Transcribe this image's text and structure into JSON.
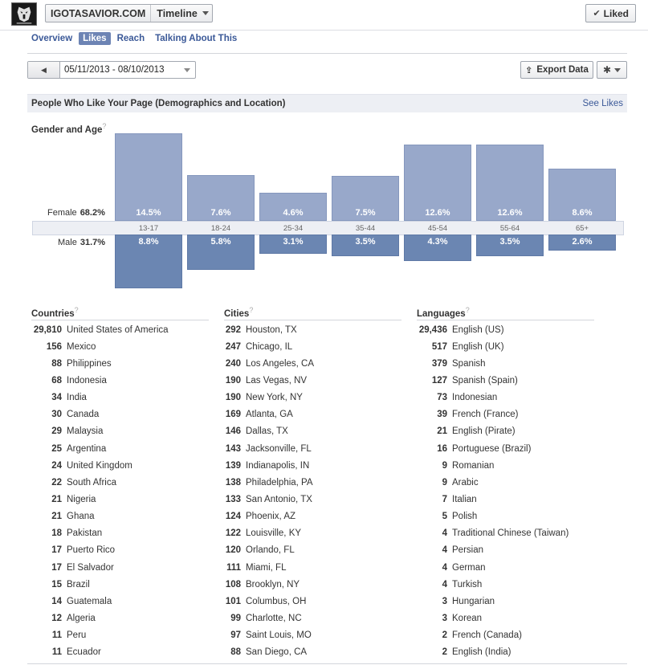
{
  "header": {
    "page_name": "IGOTASAVIOR.COM",
    "view": "Timeline",
    "liked_label": "Liked"
  },
  "tabs": [
    {
      "label": "Overview",
      "active": false
    },
    {
      "label": "Likes",
      "active": true
    },
    {
      "label": "Reach",
      "active": false
    },
    {
      "label": "Talking About This",
      "active": false
    }
  ],
  "controls": {
    "date_range": "05/11/2013 - 08/10/2013",
    "export_label": "Export Data"
  },
  "section": {
    "title": "People Who Like Your Page (Demographics and Location)",
    "link": "See Likes",
    "gender_age_label": "Gender and Age"
  },
  "chart_data": {
    "type": "bar",
    "categories": [
      "13-17",
      "18-24",
      "25-34",
      "35-44",
      "45-54",
      "55-64",
      "65+"
    ],
    "series": [
      {
        "name": "Female",
        "total": "68.2%",
        "values": [
          14.5,
          7.6,
          4.6,
          7.5,
          12.6,
          12.6,
          8.6
        ],
        "labels": [
          "14.5%",
          "7.6%",
          "4.6%",
          "7.5%",
          "12.6%",
          "12.6%",
          "8.6%"
        ]
      },
      {
        "name": "Male",
        "total": "31.7%",
        "values": [
          8.8,
          5.8,
          3.1,
          3.5,
          4.3,
          3.5,
          2.6
        ],
        "labels": [
          "8.8%",
          "5.8%",
          "3.1%",
          "3.5%",
          "4.3%",
          "3.5%",
          "2.6%"
        ]
      }
    ]
  },
  "countries": {
    "label": "Countries",
    "rows": [
      {
        "num": "29,810",
        "name": "United States of America"
      },
      {
        "num": "156",
        "name": "Mexico"
      },
      {
        "num": "88",
        "name": "Philippines"
      },
      {
        "num": "68",
        "name": "Indonesia"
      },
      {
        "num": "34",
        "name": "India"
      },
      {
        "num": "30",
        "name": "Canada"
      },
      {
        "num": "29",
        "name": "Malaysia"
      },
      {
        "num": "25",
        "name": "Argentina"
      },
      {
        "num": "24",
        "name": "United Kingdom"
      },
      {
        "num": "22",
        "name": "South Africa"
      },
      {
        "num": "21",
        "name": "Nigeria"
      },
      {
        "num": "21",
        "name": "Ghana"
      },
      {
        "num": "18",
        "name": "Pakistan"
      },
      {
        "num": "17",
        "name": "Puerto Rico"
      },
      {
        "num": "17",
        "name": "El Salvador"
      },
      {
        "num": "15",
        "name": "Brazil"
      },
      {
        "num": "14",
        "name": "Guatemala"
      },
      {
        "num": "12",
        "name": "Algeria"
      },
      {
        "num": "11",
        "name": "Peru"
      },
      {
        "num": "11",
        "name": "Ecuador"
      }
    ]
  },
  "cities": {
    "label": "Cities",
    "rows": [
      {
        "num": "292",
        "name": "Houston, TX"
      },
      {
        "num": "247",
        "name": "Chicago, IL"
      },
      {
        "num": "240",
        "name": "Los Angeles, CA"
      },
      {
        "num": "190",
        "name": "Las Vegas, NV"
      },
      {
        "num": "190",
        "name": "New York, NY"
      },
      {
        "num": "169",
        "name": "Atlanta, GA"
      },
      {
        "num": "146",
        "name": "Dallas, TX"
      },
      {
        "num": "143",
        "name": "Jacksonville, FL"
      },
      {
        "num": "139",
        "name": "Indianapolis, IN"
      },
      {
        "num": "138",
        "name": "Philadelphia, PA"
      },
      {
        "num": "133",
        "name": "San Antonio, TX"
      },
      {
        "num": "124",
        "name": "Phoenix, AZ"
      },
      {
        "num": "122",
        "name": "Louisville, KY"
      },
      {
        "num": "120",
        "name": "Orlando, FL"
      },
      {
        "num": "111",
        "name": "Miami, FL"
      },
      {
        "num": "108",
        "name": "Brooklyn, NY"
      },
      {
        "num": "101",
        "name": "Columbus, OH"
      },
      {
        "num": "99",
        "name": "Charlotte, NC"
      },
      {
        "num": "97",
        "name": "Saint Louis, MO"
      },
      {
        "num": "88",
        "name": "San Diego, CA"
      }
    ]
  },
  "languages": {
    "label": "Languages",
    "rows": [
      {
        "num": "29,436",
        "name": "English (US)"
      },
      {
        "num": "517",
        "name": "English (UK)"
      },
      {
        "num": "379",
        "name": "Spanish"
      },
      {
        "num": "127",
        "name": "Spanish (Spain)"
      },
      {
        "num": "73",
        "name": "Indonesian"
      },
      {
        "num": "39",
        "name": "French (France)"
      },
      {
        "num": "21",
        "name": "English (Pirate)"
      },
      {
        "num": "16",
        "name": "Portuguese (Brazil)"
      },
      {
        "num": "9",
        "name": "Romanian"
      },
      {
        "num": "9",
        "name": "Arabic"
      },
      {
        "num": "7",
        "name": "Italian"
      },
      {
        "num": "5",
        "name": "Polish"
      },
      {
        "num": "4",
        "name": "Traditional Chinese (Taiwan)"
      },
      {
        "num": "4",
        "name": "Persian"
      },
      {
        "num": "4",
        "name": "German"
      },
      {
        "num": "4",
        "name": "Turkish"
      },
      {
        "num": "3",
        "name": "Hungarian"
      },
      {
        "num": "3",
        "name": "Korean"
      },
      {
        "num": "2",
        "name": "French (Canada)"
      },
      {
        "num": "2",
        "name": "English (India)"
      }
    ]
  },
  "colors": {
    "female_bar": "#98a8ca",
    "male_bar": "#6b86b2",
    "link": "#3b5998",
    "active_tab": "#6d84b4"
  }
}
